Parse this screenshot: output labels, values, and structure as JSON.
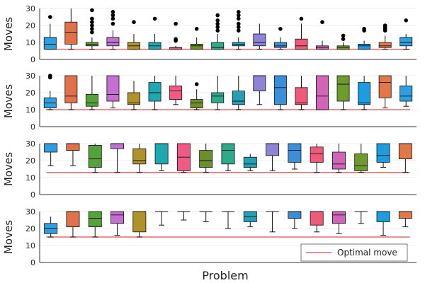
{
  "chart_data": {
    "type": "box",
    "xlabel": "Problem",
    "ylabel": "Moves",
    "ylim": [
      0,
      30
    ],
    "yticks": [
      0,
      10,
      20,
      30
    ],
    "grid": true,
    "legend": {
      "position": "bottom-right",
      "entries": [
        "Optimal move"
      ]
    },
    "optimal_color": "#e26b6b",
    "palette": [
      "#2e9fe0",
      "#e0714a",
      "#55a23a",
      "#c46fd2",
      "#b0922a",
      "#1ea8b2",
      "#f05a85",
      "#6c8f2e",
      "#2bab8a",
      "#259fb8",
      "#8f83d8",
      "#3b8fd8",
      "#ee5a78",
      "#d165b8",
      "#6e9a2e",
      "#1e9ce0",
      "#e07848"
    ],
    "panels": [
      {
        "optimal": 6,
        "boxes": [
          {
            "whislo": 6,
            "q1": 6,
            "med": 9,
            "q3": 13,
            "whishi": 21,
            "fliers": [
              25
            ]
          },
          {
            "whislo": 6,
            "q1": 9,
            "med": 16,
            "q3": 22,
            "whishi": 30,
            "fliers": []
          },
          {
            "whislo": 6,
            "q1": 8,
            "med": 9,
            "q3": 10,
            "whishi": 13,
            "fliers": [
              16,
              18,
              20,
              22,
              24,
              29
            ]
          },
          {
            "whislo": 6,
            "q1": 8,
            "med": 10,
            "q3": 13,
            "whishi": 17,
            "fliers": [
              21,
              24,
              26,
              28
            ]
          },
          {
            "whislo": 6,
            "q1": 6,
            "med": 8,
            "q3": 10,
            "whishi": 15,
            "fliers": [
              22
            ]
          },
          {
            "whislo": 6,
            "q1": 6,
            "med": 8,
            "q3": 10,
            "whishi": 15,
            "fliers": [
              24
            ]
          },
          {
            "whislo": 6,
            "q1": 6,
            "med": 7,
            "q3": 7,
            "whishi": 8,
            "fliers": [
              11,
              12,
              21
            ]
          },
          {
            "whislo": 6,
            "q1": 6,
            "med": 8,
            "q3": 9,
            "whishi": 13,
            "fliers": [
              18
            ]
          },
          {
            "whislo": 6,
            "q1": 6,
            "med": 7,
            "q3": 10,
            "whishi": 15,
            "fliers": [
              17,
              19,
              21,
              23,
              26
            ]
          },
          {
            "whislo": 6,
            "q1": 8,
            "med": 9,
            "q3": 10,
            "whishi": 13,
            "fliers": [
              17,
              19,
              21,
              24,
              26,
              28
            ]
          },
          {
            "whislo": 6,
            "q1": 8,
            "med": 10,
            "q3": 15,
            "whishi": 21,
            "fliers": []
          },
          {
            "whislo": 6,
            "q1": 7,
            "med": 8,
            "q3": 10,
            "whishi": 13,
            "fliers": [
              18
            ]
          },
          {
            "whislo": 6,
            "q1": 6,
            "med": 8,
            "q3": 12,
            "whishi": 21,
            "fliers": [
              24
            ]
          },
          {
            "whislo": 6,
            "q1": 6,
            "med": 7,
            "q3": 8,
            "whishi": 11,
            "fliers": [
              22
            ]
          },
          {
            "whislo": 6,
            "q1": 6,
            "med": 7,
            "q3": 8,
            "whishi": 10,
            "fliers": [
              12,
              14
            ]
          },
          {
            "whislo": 6,
            "q1": 6,
            "med": 8,
            "q3": 9,
            "whishi": 11,
            "fliers": [
              17,
              18
            ]
          },
          {
            "whislo": 6,
            "q1": 7,
            "med": 8,
            "q3": 10,
            "whishi": 14,
            "fliers": [
              17,
              18,
              19,
              20
            ]
          },
          {
            "whislo": 6,
            "q1": 8,
            "med": 10,
            "q3": 13,
            "whishi": 15,
            "fliers": [
              23
            ]
          }
        ]
      },
      {
        "optimal": 10,
        "boxes": [
          {
            "whislo": 10,
            "q1": 11,
            "med": 14,
            "q3": 17,
            "whishi": 21,
            "fliers": [
              29,
              30
            ]
          },
          {
            "whislo": 10,
            "q1": 14,
            "med": 18,
            "q3": 30,
            "whishi": 30,
            "fliers": []
          },
          {
            "whislo": 10,
            "q1": 12,
            "med": 14,
            "q3": 19,
            "whishi": 30,
            "fliers": []
          },
          {
            "whislo": 11,
            "q1": 15,
            "med": 19,
            "q3": 30,
            "whishi": 30,
            "fliers": []
          },
          {
            "whislo": 10,
            "q1": 13,
            "med": 14,
            "q3": 20,
            "whishi": 27,
            "fliers": []
          },
          {
            "whislo": 10,
            "q1": 15,
            "med": 20,
            "q3": 26,
            "whishi": 30,
            "fliers": []
          },
          {
            "whislo": 13,
            "q1": 16,
            "med": 21,
            "q3": 24,
            "whishi": 30,
            "fliers": []
          },
          {
            "whislo": 10,
            "q1": 11,
            "med": 14,
            "q3": 16,
            "whishi": 22,
            "fliers": [
              25
            ]
          },
          {
            "whislo": 10,
            "q1": 14,
            "med": 18,
            "q3": 20,
            "whishi": 30,
            "fliers": []
          },
          {
            "whislo": 10,
            "q1": 13,
            "med": 15,
            "q3": 21,
            "whishi": 30,
            "fliers": []
          },
          {
            "whislo": 13,
            "q1": 21,
            "med": 30,
            "q3": 30,
            "whishi": 30,
            "fliers": []
          },
          {
            "whislo": 10,
            "q1": 13,
            "med": 23,
            "q3": 30,
            "whishi": 30,
            "fliers": []
          },
          {
            "whislo": 10,
            "q1": 13,
            "med": 14,
            "q3": 23,
            "whishi": 30,
            "fliers": []
          },
          {
            "whislo": 10,
            "q1": 10,
            "med": 18,
            "q3": 30,
            "whishi": 30,
            "fliers": []
          },
          {
            "whislo": 10,
            "q1": 15,
            "med": 25,
            "q3": 30,
            "whishi": 30,
            "fliers": []
          },
          {
            "whislo": 10,
            "q1": 13,
            "med": 14,
            "q3": 26,
            "whishi": 30,
            "fliers": []
          },
          {
            "whislo": 11,
            "q1": 17,
            "med": 26,
            "q3": 30,
            "whishi": 30,
            "fliers": []
          },
          {
            "whislo": 12,
            "q1": 15,
            "med": 18,
            "q3": 24,
            "whishi": 30,
            "fliers": []
          }
        ]
      },
      {
        "optimal": 13,
        "boxes": [
          {
            "whislo": 17,
            "q1": 25,
            "med": 30,
            "q3": 30,
            "whishi": 30,
            "fliers": []
          },
          {
            "whislo": 17,
            "q1": 26,
            "med": 30,
            "q3": 30,
            "whishi": 30,
            "fliers": []
          },
          {
            "whislo": 13,
            "q1": 16,
            "med": 21,
            "q3": 29,
            "whishi": 30,
            "fliers": []
          },
          {
            "whislo": 13,
            "q1": 27,
            "med": 30,
            "q3": 30,
            "whishi": 30,
            "fliers": []
          },
          {
            "whislo": 13,
            "q1": 18,
            "med": 20,
            "q3": 27,
            "whishi": 30,
            "fliers": []
          },
          {
            "whislo": 14,
            "q1": 18,
            "med": 30,
            "q3": 30,
            "whishi": 30,
            "fliers": []
          },
          {
            "whislo": 13,
            "q1": 14,
            "med": 22,
            "q3": 30,
            "whishi": 30,
            "fliers": []
          },
          {
            "whislo": 13,
            "q1": 16,
            "med": 20,
            "q3": 26,
            "whishi": 30,
            "fliers": []
          },
          {
            "whislo": 14,
            "q1": 18,
            "med": 26,
            "q3": 30,
            "whishi": 30,
            "fliers": []
          },
          {
            "whislo": 14,
            "q1": 16,
            "med": 18,
            "q3": 22,
            "whishi": 24,
            "fliers": []
          },
          {
            "whislo": 14,
            "q1": 23,
            "med": 30,
            "q3": 30,
            "whishi": 30,
            "fliers": []
          },
          {
            "whislo": 15,
            "q1": 19,
            "med": 26,
            "q3": 30,
            "whishi": 30,
            "fliers": []
          },
          {
            "whislo": 13,
            "q1": 19,
            "med": 24,
            "q3": 28,
            "whishi": 30,
            "fliers": []
          },
          {
            "whislo": 13,
            "q1": 15,
            "med": 18,
            "q3": 25,
            "whishi": 30,
            "fliers": []
          },
          {
            "whislo": 13,
            "q1": 14,
            "med": 17,
            "q3": 24,
            "whishi": 30,
            "fliers": []
          },
          {
            "whislo": 16,
            "q1": 19,
            "med": 23,
            "q3": 30,
            "whishi": 30,
            "fliers": []
          },
          {
            "whislo": 13,
            "q1": 21,
            "med": 30,
            "q3": 30,
            "whishi": 30,
            "fliers": []
          }
        ]
      },
      {
        "optimal": 15,
        "boxes": [
          {
            "whislo": 15,
            "q1": 17,
            "med": 20,
            "q3": 23,
            "whishi": 27,
            "fliers": []
          },
          {
            "whislo": 15,
            "q1": 21,
            "med": 30,
            "q3": 30,
            "whishi": 30,
            "fliers": []
          },
          {
            "whislo": 15,
            "q1": 21,
            "med": 26,
            "q3": 30,
            "whishi": 30,
            "fliers": []
          },
          {
            "whislo": 16,
            "q1": 23,
            "med": 28,
            "q3": 30,
            "whishi": 30,
            "fliers": []
          },
          {
            "whislo": 15,
            "q1": 18,
            "med": 30,
            "q3": 30,
            "whishi": 30,
            "fliers": []
          },
          {
            "whislo": 22,
            "q1": 30,
            "med": 30,
            "q3": 30,
            "whishi": 30,
            "fliers": []
          },
          {
            "whislo": 25,
            "q1": 30,
            "med": 30,
            "q3": 30,
            "whishi": 30,
            "fliers": []
          },
          {
            "whislo": 24,
            "q1": 30,
            "med": 30,
            "q3": 30,
            "whishi": 30,
            "fliers": []
          },
          {
            "whislo": 20,
            "q1": 30,
            "med": 30,
            "q3": 30,
            "whishi": 30,
            "fliers": []
          },
          {
            "whislo": 21,
            "q1": 24,
            "med": 27,
            "q3": 30,
            "whishi": 30,
            "fliers": []
          },
          {
            "whislo": 18,
            "q1": 30,
            "med": 30,
            "q3": 30,
            "whishi": 30,
            "fliers": []
          },
          {
            "whislo": 20,
            "q1": 26,
            "med": 30,
            "q3": 30,
            "whishi": 30,
            "fliers": []
          },
          {
            "whislo": 18,
            "q1": 22,
            "med": 30,
            "q3": 30,
            "whishi": 30,
            "fliers": []
          },
          {
            "whislo": 17,
            "q1": 23,
            "med": 28,
            "q3": 30,
            "whishi": 30,
            "fliers": []
          },
          {
            "whislo": 23,
            "q1": 30,
            "med": 30,
            "q3": 30,
            "whishi": 30,
            "fliers": []
          },
          {
            "whislo": 16,
            "q1": 24,
            "med": 30,
            "q3": 30,
            "whishi": 30,
            "fliers": []
          },
          {
            "whislo": 21,
            "q1": 26,
            "med": 30,
            "q3": 30,
            "whishi": 30,
            "fliers": []
          }
        ]
      }
    ]
  }
}
